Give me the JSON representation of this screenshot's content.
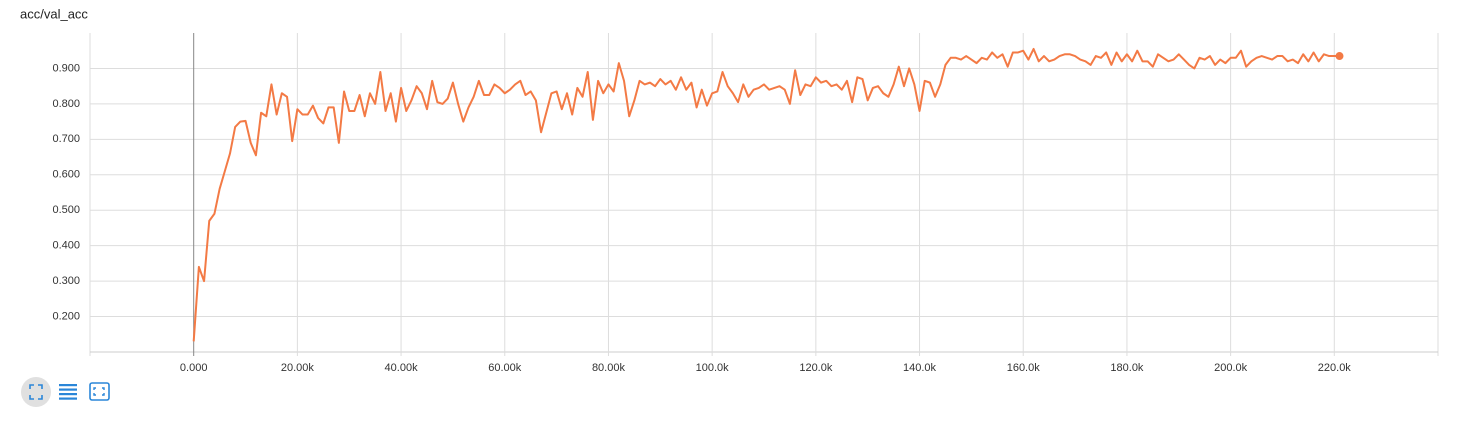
{
  "chart_data": {
    "type": "line",
    "title": "acc/val_acc",
    "x": [
      0,
      1000,
      2000,
      3000,
      4000,
      5000,
      6000,
      7000,
      8000,
      9000,
      10000,
      11000,
      12000,
      13000,
      14000,
      15000,
      16000,
      17000,
      18000,
      19000,
      20000,
      21000,
      22000,
      23000,
      24000,
      25000,
      26000,
      27000,
      28000,
      29000,
      30000,
      31000,
      32000,
      33000,
      34000,
      35000,
      36000,
      37000,
      38000,
      39000,
      40000,
      41000,
      42000,
      43000,
      44000,
      45000,
      46000,
      47000,
      48000,
      49000,
      50000,
      51000,
      52000,
      53000,
      54000,
      55000,
      56000,
      57000,
      58000,
      59000,
      60000,
      61000,
      62000,
      63000,
      64000,
      65000,
      66000,
      67000,
      68000,
      69000,
      70000,
      71000,
      72000,
      73000,
      74000,
      75000,
      76000,
      77000,
      78000,
      79000,
      80000,
      81000,
      82000,
      83000,
      84000,
      85000,
      86000,
      87000,
      88000,
      89000,
      90000,
      91000,
      92000,
      93000,
      94000,
      95000,
      96000,
      97000,
      98000,
      99000,
      100000,
      101000,
      102000,
      103000,
      104000,
      105000,
      106000,
      107000,
      108000,
      109000,
      110000,
      111000,
      112000,
      113000,
      114000,
      115000,
      116000,
      117000,
      118000,
      119000,
      120000,
      121000,
      122000,
      123000,
      124000,
      125000,
      126000,
      127000,
      128000,
      129000,
      130000,
      131000,
      132000,
      133000,
      134000,
      135000,
      136000,
      137000,
      138000,
      139000,
      140000,
      141000,
      142000,
      143000,
      144000,
      145000,
      146000,
      147000,
      148000,
      149000,
      150000,
      151000,
      152000,
      153000,
      154000,
      155000,
      156000,
      157000,
      158000,
      159000,
      160000,
      161000,
      162000,
      163000,
      164000,
      165000,
      166000,
      167000,
      168000,
      169000,
      170000,
      171000,
      172000,
      173000,
      174000,
      175000,
      176000,
      177000,
      178000,
      179000,
      180000,
      181000,
      182000,
      183000,
      184000,
      185000,
      186000,
      187000,
      188000,
      189000,
      190000,
      191000,
      192000,
      193000,
      194000,
      195000,
      196000,
      197000,
      198000,
      199000,
      200000,
      201000,
      202000,
      203000,
      204000,
      205000,
      206000,
      207000,
      208000,
      209000,
      210000,
      211000,
      212000,
      213000,
      214000,
      215000,
      216000,
      217000,
      218000,
      219000,
      220000,
      221000
    ],
    "series": [
      {
        "color": "#f37a45",
        "values": [
          0.13,
          0.34,
          0.3,
          0.47,
          0.49,
          0.56,
          0.61,
          0.66,
          0.735,
          0.75,
          0.752,
          0.69,
          0.655,
          0.775,
          0.765,
          0.855,
          0.77,
          0.83,
          0.82,
          0.695,
          0.785,
          0.77,
          0.77,
          0.795,
          0.76,
          0.745,
          0.79,
          0.79,
          0.69,
          0.835,
          0.78,
          0.78,
          0.825,
          0.765,
          0.83,
          0.8,
          0.89,
          0.78,
          0.83,
          0.75,
          0.845,
          0.78,
          0.81,
          0.85,
          0.83,
          0.785,
          0.865,
          0.805,
          0.8,
          0.815,
          0.86,
          0.8,
          0.75,
          0.79,
          0.82,
          0.865,
          0.825,
          0.825,
          0.855,
          0.845,
          0.83,
          0.84,
          0.855,
          0.865,
          0.825,
          0.835,
          0.81,
          0.72,
          0.775,
          0.83,
          0.835,
          0.785,
          0.83,
          0.77,
          0.845,
          0.82,
          0.89,
          0.755,
          0.865,
          0.83,
          0.855,
          0.835,
          0.915,
          0.865,
          0.765,
          0.81,
          0.865,
          0.855,
          0.86,
          0.85,
          0.87,
          0.855,
          0.865,
          0.84,
          0.875,
          0.84,
          0.86,
          0.79,
          0.84,
          0.795,
          0.83,
          0.835,
          0.89,
          0.85,
          0.83,
          0.805,
          0.855,
          0.82,
          0.84,
          0.845,
          0.855,
          0.84,
          0.845,
          0.85,
          0.84,
          0.8,
          0.895,
          0.825,
          0.855,
          0.85,
          0.875,
          0.86,
          0.865,
          0.85,
          0.855,
          0.84,
          0.865,
          0.805,
          0.875,
          0.87,
          0.81,
          0.845,
          0.85,
          0.83,
          0.82,
          0.855,
          0.905,
          0.85,
          0.9,
          0.855,
          0.78,
          0.865,
          0.86,
          0.82,
          0.855,
          0.91,
          0.93,
          0.93,
          0.925,
          0.935,
          0.925,
          0.915,
          0.93,
          0.925,
          0.945,
          0.93,
          0.94,
          0.905,
          0.945,
          0.945,
          0.95,
          0.925,
          0.955,
          0.92,
          0.935,
          0.92,
          0.925,
          0.935,
          0.94,
          0.94,
          0.935,
          0.925,
          0.92,
          0.91,
          0.935,
          0.93,
          0.945,
          0.91,
          0.945,
          0.92,
          0.94,
          0.92,
          0.95,
          0.92,
          0.92,
          0.905,
          0.94,
          0.93,
          0.92,
          0.925,
          0.94,
          0.925,
          0.91,
          0.9,
          0.93,
          0.925,
          0.935,
          0.91,
          0.925,
          0.915,
          0.93,
          0.93,
          0.95,
          0.905,
          0.92,
          0.93,
          0.935,
          0.93,
          0.925,
          0.935,
          0.935,
          0.92,
          0.925,
          0.915,
          0.94,
          0.92,
          0.945,
          0.92,
          0.94,
          0.935,
          0.935,
          0.935
        ]
      }
    ],
    "xlim": [
      -20000,
      240000
    ],
    "ylim": [
      0.1,
      1.0
    ],
    "xticks": [
      {
        "value": 0,
        "label": "0.000"
      },
      {
        "value": 20000,
        "label": "20.00k"
      },
      {
        "value": 40000,
        "label": "40.00k"
      },
      {
        "value": 60000,
        "label": "60.00k"
      },
      {
        "value": 80000,
        "label": "80.00k"
      },
      {
        "value": 100000,
        "label": "100.0k"
      },
      {
        "value": 120000,
        "label": "120.0k"
      },
      {
        "value": 140000,
        "label": "140.0k"
      },
      {
        "value": 160000,
        "label": "160.0k"
      },
      {
        "value": 180000,
        "label": "180.0k"
      },
      {
        "value": 200000,
        "label": "200.0k"
      },
      {
        "value": 220000,
        "label": "220.0k"
      }
    ],
    "yticks": [
      {
        "value": 0.2,
        "label": "0.200"
      },
      {
        "value": 0.3,
        "label": "0.300"
      },
      {
        "value": 0.4,
        "label": "0.400"
      },
      {
        "value": 0.5,
        "label": "0.500"
      },
      {
        "value": 0.6,
        "label": "0.600"
      },
      {
        "value": 0.7,
        "label": "0.700"
      },
      {
        "value": 0.8,
        "label": "0.800"
      },
      {
        "value": 0.9,
        "label": "0.900"
      }
    ],
    "grid": true
  }
}
